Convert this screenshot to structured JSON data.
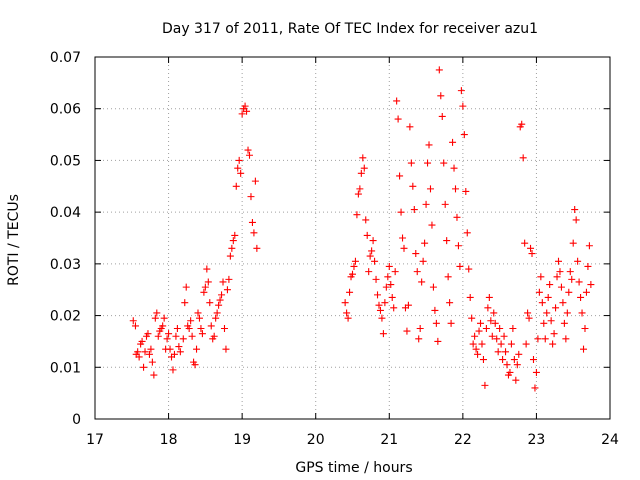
{
  "chart_data": {
    "type": "scatter",
    "title": "Day 317 of 2011, Rate Of TEC Index for receiver azu1",
    "xlabel": "GPS time / hours",
    "ylabel": "ROTI / TECUs",
    "xlim": [
      17,
      24
    ],
    "ylim": [
      0,
      0.07
    ],
    "x_ticks": [
      "17",
      "18",
      "19",
      "20",
      "21",
      "22",
      "23",
      "24"
    ],
    "y_ticks": [
      "0",
      "0.01",
      "0.02",
      "0.03",
      "0.04",
      "0.05",
      "0.06",
      "0.07"
    ],
    "grid": true,
    "legend": "none",
    "marker": "plus",
    "color": "#ff0000",
    "series": [
      {
        "points": [
          [
            17.52,
            0.019
          ],
          [
            17.55,
            0.018
          ],
          [
            17.56,
            0.0125
          ],
          [
            17.58,
            0.013
          ],
          [
            17.6,
            0.012
          ],
          [
            17.62,
            0.0145
          ],
          [
            17.64,
            0.015
          ],
          [
            17.66,
            0.01
          ],
          [
            17.68,
            0.013
          ],
          [
            17.7,
            0.016
          ],
          [
            17.72,
            0.0165
          ],
          [
            17.74,
            0.0125
          ],
          [
            17.76,
            0.0135
          ],
          [
            17.78,
            0.011
          ],
          [
            17.8,
            0.0085
          ],
          [
            17.82,
            0.0195
          ],
          [
            17.84,
            0.0205
          ],
          [
            17.86,
            0.016
          ],
          [
            17.88,
            0.017
          ],
          [
            17.9,
            0.0175
          ],
          [
            17.92,
            0.018
          ],
          [
            17.94,
            0.0195
          ],
          [
            17.96,
            0.0135
          ],
          [
            17.98,
            0.0155
          ],
          [
            18.0,
            0.0165
          ],
          [
            18.02,
            0.0135
          ],
          [
            18.04,
            0.012
          ],
          [
            18.06,
            0.0095
          ],
          [
            18.08,
            0.0125
          ],
          [
            18.1,
            0.016
          ],
          [
            18.12,
            0.0175
          ],
          [
            18.14,
            0.014
          ],
          [
            18.16,
            0.013
          ],
          [
            18.2,
            0.0155
          ],
          [
            18.22,
            0.0225
          ],
          [
            18.24,
            0.0255
          ],
          [
            18.26,
            0.018
          ],
          [
            18.28,
            0.0175
          ],
          [
            18.3,
            0.019
          ],
          [
            18.32,
            0.016
          ],
          [
            18.34,
            0.011
          ],
          [
            18.36,
            0.0105
          ],
          [
            18.38,
            0.0135
          ],
          [
            18.4,
            0.0205
          ],
          [
            18.42,
            0.0195
          ],
          [
            18.44,
            0.0175
          ],
          [
            18.46,
            0.0165
          ],
          [
            18.48,
            0.0245
          ],
          [
            18.5,
            0.0255
          ],
          [
            18.52,
            0.029
          ],
          [
            18.54,
            0.0265
          ],
          [
            18.56,
            0.0225
          ],
          [
            18.58,
            0.018
          ],
          [
            18.6,
            0.0155
          ],
          [
            18.62,
            0.016
          ],
          [
            18.64,
            0.0195
          ],
          [
            18.66,
            0.0205
          ],
          [
            18.68,
            0.022
          ],
          [
            18.7,
            0.023
          ],
          [
            18.72,
            0.024
          ],
          [
            18.74,
            0.0265
          ],
          [
            18.76,
            0.0175
          ],
          [
            18.78,
            0.0135
          ],
          [
            18.8,
            0.025
          ],
          [
            18.82,
            0.027
          ],
          [
            18.84,
            0.0315
          ],
          [
            18.86,
            0.033
          ],
          [
            18.88,
            0.0345
          ],
          [
            18.9,
            0.0355
          ],
          [
            18.92,
            0.045
          ],
          [
            18.94,
            0.0485
          ],
          [
            18.96,
            0.05
          ],
          [
            18.98,
            0.0475
          ],
          [
            19.0,
            0.059
          ],
          [
            19.02,
            0.06
          ],
          [
            19.04,
            0.0605
          ],
          [
            19.06,
            0.0595
          ],
          [
            19.08,
            0.052
          ],
          [
            19.1,
            0.051
          ],
          [
            19.12,
            0.043
          ],
          [
            19.14,
            0.038
          ],
          [
            19.16,
            0.036
          ],
          [
            19.18,
            0.046
          ],
          [
            19.2,
            0.033
          ],
          [
            20.4,
            0.0225
          ],
          [
            20.42,
            0.0205
          ],
          [
            20.44,
            0.0195
          ],
          [
            20.46,
            0.0245
          ],
          [
            20.48,
            0.0275
          ],
          [
            20.5,
            0.028
          ],
          [
            20.52,
            0.0295
          ],
          [
            20.54,
            0.0305
          ],
          [
            20.56,
            0.0395
          ],
          [
            20.58,
            0.0435
          ],
          [
            20.6,
            0.0445
          ],
          [
            20.62,
            0.0475
          ],
          [
            20.64,
            0.0505
          ],
          [
            20.66,
            0.0485
          ],
          [
            20.68,
            0.0385
          ],
          [
            20.7,
            0.0355
          ],
          [
            20.72,
            0.0285
          ],
          [
            20.74,
            0.0315
          ],
          [
            20.76,
            0.0325
          ],
          [
            20.78,
            0.0345
          ],
          [
            20.8,
            0.0305
          ],
          [
            20.82,
            0.027
          ],
          [
            20.84,
            0.024
          ],
          [
            20.86,
            0.022
          ],
          [
            20.88,
            0.021
          ],
          [
            20.9,
            0.0195
          ],
          [
            20.92,
            0.0165
          ],
          [
            20.94,
            0.0225
          ],
          [
            20.96,
            0.0255
          ],
          [
            20.98,
            0.0275
          ],
          [
            21.0,
            0.0295
          ],
          [
            21.02,
            0.026
          ],
          [
            21.04,
            0.0235
          ],
          [
            21.06,
            0.0215
          ],
          [
            21.08,
            0.0285
          ],
          [
            21.1,
            0.0615
          ],
          [
            21.12,
            0.058
          ],
          [
            21.14,
            0.047
          ],
          [
            21.16,
            0.04
          ],
          [
            21.18,
            0.035
          ],
          [
            21.2,
            0.033
          ],
          [
            21.22,
            0.0215
          ],
          [
            21.24,
            0.017
          ],
          [
            21.26,
            0.022
          ],
          [
            21.28,
            0.0565
          ],
          [
            21.3,
            0.0495
          ],
          [
            21.32,
            0.045
          ],
          [
            21.34,
            0.0405
          ],
          [
            21.36,
            0.032
          ],
          [
            21.38,
            0.0285
          ],
          [
            21.4,
            0.0155
          ],
          [
            21.42,
            0.0175
          ],
          [
            21.44,
            0.0265
          ],
          [
            21.46,
            0.0305
          ],
          [
            21.48,
            0.034
          ],
          [
            21.5,
            0.0415
          ],
          [
            21.52,
            0.0495
          ],
          [
            21.54,
            0.053
          ],
          [
            21.56,
            0.0445
          ],
          [
            21.58,
            0.0375
          ],
          [
            21.6,
            0.0255
          ],
          [
            21.62,
            0.021
          ],
          [
            21.64,
            0.0185
          ],
          [
            21.66,
            0.015
          ],
          [
            21.68,
            0.0675
          ],
          [
            21.7,
            0.0625
          ],
          [
            21.72,
            0.0585
          ],
          [
            21.74,
            0.0495
          ],
          [
            21.76,
            0.0415
          ],
          [
            21.78,
            0.0345
          ],
          [
            21.8,
            0.0275
          ],
          [
            21.82,
            0.0225
          ],
          [
            21.84,
            0.0185
          ],
          [
            21.86,
            0.0535
          ],
          [
            21.88,
            0.0485
          ],
          [
            21.9,
            0.0445
          ],
          [
            21.92,
            0.039
          ],
          [
            21.94,
            0.0335
          ],
          [
            21.96,
            0.0295
          ],
          [
            21.98,
            0.0635
          ],
          [
            22.0,
            0.0605
          ],
          [
            22.02,
            0.055
          ],
          [
            22.04,
            0.044
          ],
          [
            22.06,
            0.036
          ],
          [
            22.08,
            0.029
          ],
          [
            22.1,
            0.0235
          ],
          [
            22.12,
            0.0195
          ],
          [
            22.14,
            0.0145
          ],
          [
            22.16,
            0.016
          ],
          [
            22.18,
            0.0135
          ],
          [
            22.2,
            0.0125
          ],
          [
            22.22,
            0.017
          ],
          [
            22.24,
            0.0185
          ],
          [
            22.26,
            0.0145
          ],
          [
            22.28,
            0.0115
          ],
          [
            22.3,
            0.0065
          ],
          [
            22.32,
            0.0175
          ],
          [
            22.34,
            0.0215
          ],
          [
            22.36,
            0.0235
          ],
          [
            22.38,
            0.019
          ],
          [
            22.4,
            0.016
          ],
          [
            22.42,
            0.0205
          ],
          [
            22.44,
            0.0185
          ],
          [
            22.46,
            0.0155
          ],
          [
            22.48,
            0.013
          ],
          [
            22.5,
            0.0175
          ],
          [
            22.52,
            0.0145
          ],
          [
            22.54,
            0.0115
          ],
          [
            22.56,
            0.016
          ],
          [
            22.58,
            0.013
          ],
          [
            22.6,
            0.0105
          ],
          [
            22.62,
            0.0085
          ],
          [
            22.64,
            0.009
          ],
          [
            22.66,
            0.0145
          ],
          [
            22.68,
            0.0175
          ],
          [
            22.7,
            0.0115
          ],
          [
            22.72,
            0.0075
          ],
          [
            22.74,
            0.0105
          ],
          [
            22.76,
            0.0125
          ],
          [
            22.78,
            0.0565
          ],
          [
            22.8,
            0.057
          ],
          [
            22.82,
            0.0505
          ],
          [
            22.84,
            0.034
          ],
          [
            22.86,
            0.0145
          ],
          [
            22.88,
            0.0205
          ],
          [
            22.9,
            0.0195
          ],
          [
            22.92,
            0.033
          ],
          [
            22.94,
            0.032
          ],
          [
            22.96,
            0.0115
          ],
          [
            22.98,
            0.006
          ],
          [
            23.0,
            0.009
          ],
          [
            23.02,
            0.0155
          ],
          [
            23.04,
            0.0245
          ],
          [
            23.06,
            0.0275
          ],
          [
            23.08,
            0.0225
          ],
          [
            23.1,
            0.0185
          ],
          [
            23.12,
            0.0155
          ],
          [
            23.14,
            0.0205
          ],
          [
            23.16,
            0.0235
          ],
          [
            23.18,
            0.026
          ],
          [
            23.2,
            0.019
          ],
          [
            23.22,
            0.0145
          ],
          [
            23.24,
            0.0165
          ],
          [
            23.26,
            0.0215
          ],
          [
            23.28,
            0.0275
          ],
          [
            23.3,
            0.0305
          ],
          [
            23.32,
            0.0285
          ],
          [
            23.34,
            0.0255
          ],
          [
            23.36,
            0.0225
          ],
          [
            23.38,
            0.0185
          ],
          [
            23.4,
            0.0155
          ],
          [
            23.42,
            0.0205
          ],
          [
            23.44,
            0.0245
          ],
          [
            23.46,
            0.0285
          ],
          [
            23.48,
            0.027
          ],
          [
            23.5,
            0.034
          ],
          [
            23.52,
            0.0405
          ],
          [
            23.54,
            0.0385
          ],
          [
            23.56,
            0.0305
          ],
          [
            23.58,
            0.0265
          ],
          [
            23.6,
            0.0235
          ],
          [
            23.62,
            0.0205
          ],
          [
            23.64,
            0.0135
          ],
          [
            23.66,
            0.0175
          ],
          [
            23.68,
            0.0245
          ],
          [
            23.7,
            0.0295
          ],
          [
            23.72,
            0.0335
          ],
          [
            23.74,
            0.026
          ]
        ]
      }
    ]
  }
}
